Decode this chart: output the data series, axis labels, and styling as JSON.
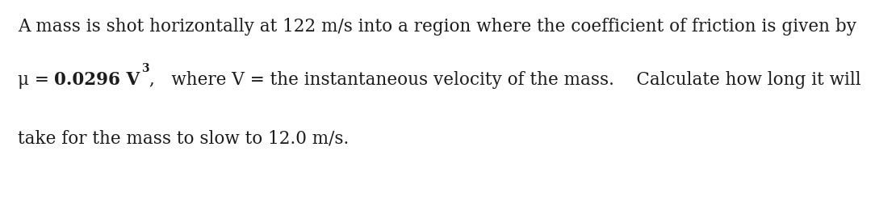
{
  "background_color": "#ffffff",
  "line1": "A mass is shot horizontally at 122 m/s into a region where the coefficient of friction is given by",
  "line2_mu": "μ = ",
  "line2_bold": "0.0296 V",
  "line2_super": "3",
  "line2_suffix": ",   where V = the instantaneous velocity of the mass.    Calculate how long it will",
  "line3": "take for the mass to slow to 12.0 m/s.",
  "font_size": 15.5,
  "font_size_super": 10,
  "text_color": "#1c1c1c",
  "font_serif": "DejaVu Serif"
}
